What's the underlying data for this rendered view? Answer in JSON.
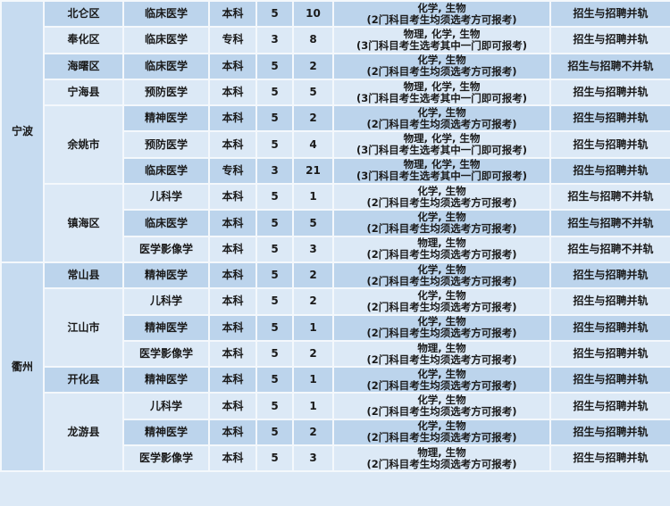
{
  "rows": [
    {
      "city": "宁波",
      "district": "北仑区",
      "major": "临床医学",
      "level": "本科",
      "years": "5",
      "count": "10",
      "subj1": "化学, 生物",
      "subj2": "(2门科目考生均须选考方可报考)",
      "note": "招生与招聘并轨"
    },
    {
      "district": "奉化区",
      "major": "临床医学",
      "level": "专科",
      "years": "3",
      "count": "8",
      "subj1": "物理, 化学, 生物",
      "subj2": "(3门科目考生选考其中一门即可报考)",
      "note": "招生与招聘并轨"
    },
    {
      "district": "海曙区",
      "major": "临床医学",
      "level": "本科",
      "years": "5",
      "count": "2",
      "subj1": "化学, 生物",
      "subj2": "(2门科目考生均须选考方可报考)",
      "note": "招生与招聘不并轨"
    },
    {
      "district": "宁海县",
      "major": "预防医学",
      "level": "本科",
      "years": "5",
      "count": "5",
      "subj1": "物理, 化学, 生物",
      "subj2": "(3门科目考生选考其中一门即可报考)",
      "note": "招生与招聘并轨"
    },
    {
      "district": "余姚市",
      "major": "精神医学",
      "level": "本科",
      "years": "5",
      "count": "2",
      "subj1": "化学, 生物",
      "subj2": "(2门科目考生均须选考方可报考)",
      "note": "招生与招聘并轨"
    },
    {
      "major": "预防医学",
      "level": "本科",
      "years": "5",
      "count": "4",
      "subj1": "物理, 化学, 生物",
      "subj2": "(3门科目考生选考其中一门即可报考)",
      "note": "招生与招聘并轨"
    },
    {
      "major": "临床医学",
      "level": "专科",
      "years": "3",
      "count": "21",
      "subj1": "物理, 化学, 生物",
      "subj2": "(3门科目考生选考其中一门即可报考)",
      "note": "招生与招聘并轨"
    },
    {
      "district": "镇海区",
      "major": "儿科学",
      "level": "本科",
      "years": "5",
      "count": "1",
      "subj1": "化学, 生物",
      "subj2": "(2门科目考生均须选考方可报考)",
      "note": "招生与招聘不并轨"
    },
    {
      "major": "临床医学",
      "level": "本科",
      "years": "5",
      "count": "5",
      "subj1": "化学, 生物",
      "subj2": "(2门科目考生均须选考方可报考)",
      "note": "招生与招聘不并轨"
    },
    {
      "major": "医学影像学",
      "level": "本科",
      "years": "5",
      "count": "3",
      "subj1": "物理, 生物",
      "subj2": "(2门科目考生均须选考方可报考)",
      "note": "招生与招聘不并轨"
    },
    {
      "city": "衢州",
      "district": "常山县",
      "major": "精神医学",
      "level": "本科",
      "years": "5",
      "count": "2",
      "subj1": "化学, 生物",
      "subj2": "(2门科目考生均须选考方可报考)",
      "note": "招生与招聘并轨"
    },
    {
      "district": "江山市",
      "major": "儿科学",
      "level": "本科",
      "years": "5",
      "count": "2",
      "subj1": "化学, 生物",
      "subj2": "(2门科目考生均须选考方可报考)",
      "note": "招生与招聘并轨"
    },
    {
      "major": "精神医学",
      "level": "本科",
      "years": "5",
      "count": "1",
      "subj1": "化学, 生物",
      "subj2": "(2门科目考生均须选考方可报考)",
      "note": "招生与招聘并轨"
    },
    {
      "major": "医学影像学",
      "level": "本科",
      "years": "5",
      "count": "2",
      "subj1": "物理, 生物",
      "subj2": "(2门科目考生均须选考方可报考)",
      "note": "招生与招聘并轨"
    },
    {
      "district": "开化县",
      "major": "精神医学",
      "level": "本科",
      "years": "5",
      "count": "1",
      "subj1": "化学, 生物",
      "subj2": "(2门科目考生均须选考方可报考)",
      "note": "招生与招聘并轨"
    },
    {
      "district": "龙游县",
      "major": "儿科学",
      "level": "本科",
      "years": "5",
      "count": "1",
      "subj1": "化学, 生物",
      "subj2": "(2门科目考生均须选考方可报考)",
      "note": "招生与招聘并轨"
    },
    {
      "major": "精神医学",
      "level": "本科",
      "years": "5",
      "count": "2",
      "subj1": "化学, 生物",
      "subj2": "(2门科目考生均须选考方可报考)",
      "note": "招生与招聘并轨"
    },
    {
      "major": "医学影像学",
      "level": "本科",
      "years": "5",
      "count": "3",
      "subj1": "物理, 生物",
      "subj2": "(2门科目考生均须选考方可报考)",
      "note": "招生与招聘并轨"
    }
  ],
  "colors": {
    "row_dark": "#bcd4ec",
    "row_light": "#dce9f6",
    "city_cell": "#c6dbf0",
    "border": "#f4f8fc"
  }
}
